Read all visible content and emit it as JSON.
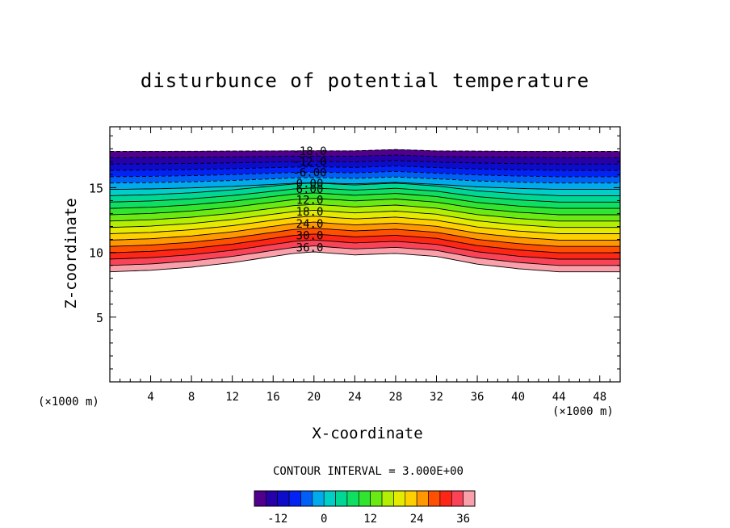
{
  "chart_data": {
    "type": "contour",
    "title": "disturbunce of potential temperature",
    "xlabel": "X-coordinate",
    "ylabel": "Z-coordinate",
    "x_unit_label": "(×1000 m)",
    "y_unit_label": "(×1000 m)",
    "xlim": [
      0,
      50
    ],
    "ylim": [
      0,
      19.7
    ],
    "x_ticks": [
      4,
      8,
      12,
      16,
      20,
      24,
      28,
      32,
      36,
      40,
      44,
      48
    ],
    "y_ticks": [
      5,
      10,
      15
    ],
    "contour_interval_text": "CONTOUR INTERVAL = 3.000E+00",
    "contour_interval": 3,
    "levels_range": [
      -18,
      39
    ],
    "field": {
      "description_values": "bottom boundary z_b(x) of colored region and top boundary z_t(x), in km",
      "x": [
        0,
        4,
        8,
        12,
        16,
        18,
        20,
        24,
        28,
        32,
        36,
        40,
        44,
        48,
        50
      ],
      "z_bottom": [
        8.5,
        8.6,
        8.8,
        9.1,
        9.5,
        9.7,
        9.8,
        9.6,
        9.7,
        9.5,
        9.0,
        8.7,
        8.5,
        8.5,
        8.5
      ],
      "z_top": [
        17.8,
        17.8,
        17.8,
        17.8,
        17.8,
        17.8,
        17.8,
        17.8,
        17.9,
        17.8,
        17.8,
        17.8,
        17.8,
        17.8,
        17.8
      ],
      "bump_amplitude": 0.6
    },
    "contour_labels": [
      {
        "text": "-18.0",
        "level": -18
      },
      {
        "text": "-12.0",
        "level": -12
      },
      {
        "text": "-6.00",
        "level": -6
      },
      {
        "text": "0.00",
        "level": 0
      },
      {
        "text": "6.00",
        "level": 6
      },
      {
        "text": "12.0",
        "level": 12
      },
      {
        "text": "18.0",
        "level": 18
      },
      {
        "text": "24.0",
        "level": 24
      },
      {
        "text": "30.0",
        "level": 30
      },
      {
        "text": "36.0",
        "level": 36
      }
    ],
    "label_x": 18,
    "colorbar": {
      "min": -18,
      "max": 39,
      "step": 3,
      "tick_labels": [
        "-12",
        "0",
        "12",
        "24",
        "36"
      ],
      "tick_values": [
        -12,
        0,
        12,
        24,
        36
      ]
    }
  }
}
